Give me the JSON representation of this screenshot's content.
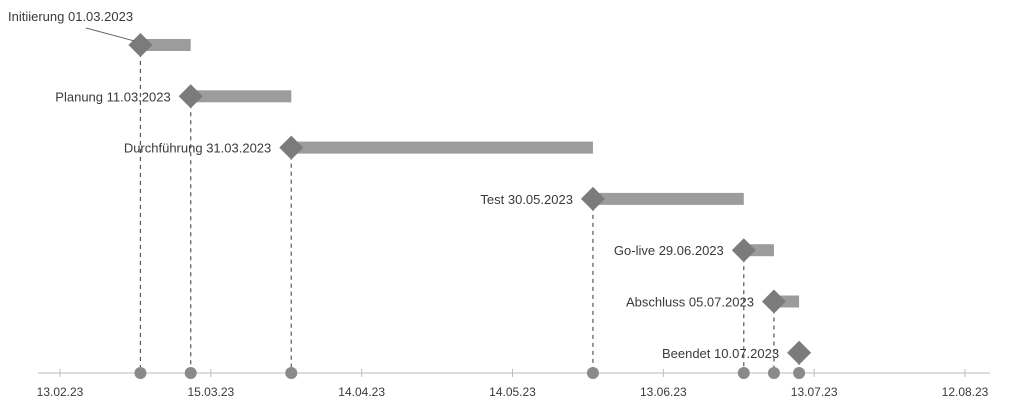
{
  "chart_data": {
    "type": "timeline",
    "title": "",
    "xlabel": "",
    "ylabel": "",
    "x_range": [
      "2023-02-13",
      "2023-08-12"
    ],
    "x_ticks": [
      "13.02.23",
      "15.03.23",
      "14.04.23",
      "14.05.23",
      "13.06.23",
      "13.07.23",
      "12.08.23"
    ],
    "grid": false,
    "colors": {
      "marker": "#7b7b7b",
      "bar": "#9c9c9c",
      "axis": "#bdbdbd",
      "dash": "#555555",
      "text": "#3a3a3a"
    },
    "milestones": [
      {
        "label": "Initiierung 01.03.2023",
        "date": "2023-03-01",
        "end": "2023-03-11"
      },
      {
        "label": "Planung 11.03.2023",
        "date": "2023-03-11",
        "end": "2023-03-31"
      },
      {
        "label": "Durchführung 31.03.2023",
        "date": "2023-03-31",
        "end": "2023-05-30"
      },
      {
        "label": "Test 30.05.2023",
        "date": "2023-05-30",
        "end": "2023-06-29"
      },
      {
        "label": "Go-live 29.06.2023",
        "date": "2023-06-29",
        "end": "2023-07-05"
      },
      {
        "label": "Abschluss 05.07.2023",
        "date": "2023-07-05",
        "end": "2023-07-10"
      },
      {
        "label": "Beendet 10.07.2023",
        "date": "2023-07-10",
        "end": "2023-07-10"
      }
    ]
  }
}
